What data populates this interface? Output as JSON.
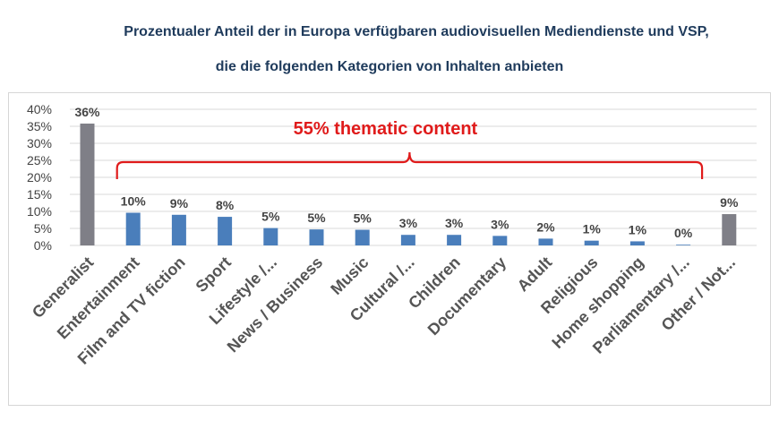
{
  "title_lines": [
    "Prozentualer Anteil der in Europa verfügbaren audiovisuellen Mediendienste und VSP,",
    "die die folgenden Kategorien von Inhalten anbieten"
  ],
  "colors": {
    "title": "#1f3b5c",
    "generalist_bar": "#7f7f87",
    "thematic_bar": "#4a7ebb",
    "annotation": "#e01b1b",
    "grid": "#d9d9d9"
  },
  "chart_data": {
    "type": "bar",
    "title": "Prozentualer Anteil der in Europa verfügbaren audiovisuellen Mediendienste und VSP, die die folgenden Kategorien von Inhalten anbieten",
    "xlabel": "",
    "ylabel": "",
    "ylim": [
      0,
      40
    ],
    "yticks": [
      "0%",
      "5%",
      "10%",
      "15%",
      "20%",
      "25%",
      "30%",
      "35%",
      "40%"
    ],
    "grid": true,
    "categories": [
      "Generalist",
      "Entertainment",
      "Film and TV fiction",
      "Sport",
      "Lifestyle /...",
      "News / Business",
      "Music",
      "Cultural /...",
      "Children",
      "Documentary",
      "Adult",
      "Religious",
      "Home shopping",
      "Parliamentary /...",
      "Other / Not..."
    ],
    "values": [
      35.8,
      9.6,
      9.0,
      8.4,
      5.1,
      4.7,
      4.6,
      3.1,
      3.1,
      2.8,
      2.0,
      1.4,
      1.2,
      0.2,
      9.2
    ],
    "data_labels": [
      "36%",
      "10%",
      "9%",
      "8%",
      "5%",
      "5%",
      "5%",
      "3%",
      "3%",
      "3%",
      "2%",
      "1%",
      "1%",
      "0%",
      "9%"
    ],
    "bar_groups": [
      "generalist",
      "thematic",
      "thematic",
      "thematic",
      "thematic",
      "thematic",
      "thematic",
      "thematic",
      "thematic",
      "thematic",
      "thematic",
      "thematic",
      "thematic",
      "thematic",
      "generalist"
    ],
    "annotation": {
      "text": "55% thematic content",
      "spans_categories": [
        "Entertainment",
        "Parliamentary /..."
      ]
    }
  }
}
